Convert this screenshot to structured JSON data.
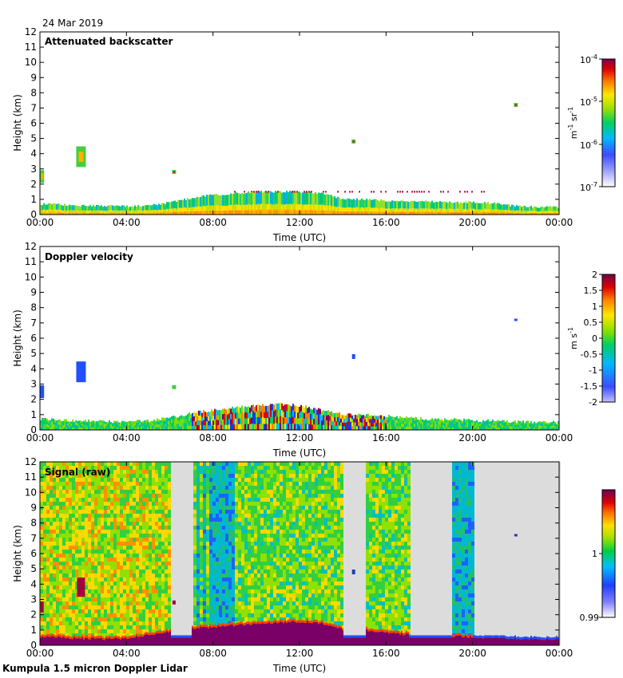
{
  "header": {
    "date": "24 Mar 2019"
  },
  "footer": {
    "instrument": "Kumpula 1.5 micron Doppler Lidar"
  },
  "chart_data": [
    {
      "type": "heatmap",
      "title": "Attenuated backscatter",
      "xlabel": "Time (UTC)",
      "ylabel": "Height (km)",
      "x_ticks": [
        "00:00",
        "04:00",
        "08:00",
        "12:00",
        "16:00",
        "20:00",
        "00:00"
      ],
      "xlim_hours": [
        0,
        24
      ],
      "ylim": [
        0,
        12
      ],
      "y_ticks": [
        0,
        1,
        2,
        3,
        4,
        5,
        6,
        7,
        8,
        9,
        10,
        11,
        12
      ],
      "colorbar": {
        "scale": "log",
        "range": [
          1e-07,
          0.0001
        ],
        "ticks": [
          {
            "base": "10",
            "exp": "-4",
            "value": -4
          },
          {
            "base": "10",
            "exp": "-5",
            "value": -5
          },
          {
            "base": "10",
            "exp": "-6",
            "value": -6
          },
          {
            "base": "10",
            "exp": "-7",
            "value": -7
          }
        ],
        "units": {
          "m": "m",
          "m_exp": "-1",
          "sr": "sr",
          "sr_exp": "-1"
        }
      },
      "boundary_layer_top_km": [
        0.7,
        0.65,
        0.6,
        0.55,
        0.55,
        0.6,
        0.8,
        1.1,
        1.3,
        1.4,
        1.5,
        1.5,
        1.5,
        1.4,
        1.0,
        1.0,
        0.9,
        0.9,
        0.85,
        0.8,
        0.8,
        0.75,
        0.55,
        0.5,
        0.5
      ],
      "features": [
        {
          "t": 0.1,
          "h": 2.5,
          "desc": "low cloud"
        },
        {
          "t": 1.9,
          "h": 3.8,
          "desc": "cloud"
        },
        {
          "t": 6.2,
          "h": 2.8,
          "desc": "small cloud"
        },
        {
          "t": 14.5,
          "h": 4.8,
          "desc": "small cloud"
        },
        {
          "t": 22.0,
          "h": 7.2,
          "desc": "small cloud"
        }
      ]
    },
    {
      "type": "heatmap",
      "title": "Doppler velocity",
      "xlabel": "Time (UTC)",
      "ylabel": "Height (km)",
      "x_ticks": [
        "00:00",
        "04:00",
        "08:00",
        "12:00",
        "16:00",
        "20:00",
        "00:00"
      ],
      "xlim_hours": [
        0,
        24
      ],
      "ylim": [
        0,
        12
      ],
      "y_ticks": [
        0,
        1,
        2,
        3,
        4,
        5,
        6,
        7,
        8,
        9,
        10,
        11,
        12
      ],
      "colorbar": {
        "scale": "linear",
        "range": [
          -2,
          2
        ],
        "ticks": [
          {
            "label": "2",
            "value": 2
          },
          {
            "label": "1.5",
            "value": 1.5
          },
          {
            "label": "1",
            "value": 1
          },
          {
            "label": "0.5",
            "value": 0.5
          },
          {
            "label": "0",
            "value": 0
          },
          {
            "label": "-0.5",
            "value": -0.5
          },
          {
            "label": "-1",
            "value": -1
          },
          {
            "label": "-1.5",
            "value": -1.5
          },
          {
            "label": "-2",
            "value": -2
          }
        ],
        "units": {
          "m": "m",
          "s": "s",
          "s_exp": "-1"
        }
      },
      "data_top_km": [
        0.7,
        0.65,
        0.6,
        0.55,
        0.55,
        0.6,
        0.8,
        1.1,
        1.3,
        1.5,
        1.6,
        1.7,
        1.6,
        1.3,
        1.0,
        1.0,
        0.9,
        0.8,
        0.7,
        0.7,
        0.6,
        0.6,
        0.55,
        0.5,
        0.5
      ]
    },
    {
      "type": "heatmap",
      "title": "Signal (raw)",
      "xlabel": "Time (UTC)",
      "ylabel": "Height (km)",
      "x_ticks": [
        "00:00",
        "04:00",
        "08:00",
        "12:00",
        "16:00",
        "20:00",
        "00:00"
      ],
      "xlim_hours": [
        0,
        24
      ],
      "ylim": [
        0,
        12
      ],
      "y_ticks": [
        0,
        1,
        2,
        3,
        4,
        5,
        6,
        7,
        8,
        9,
        10,
        11,
        12
      ],
      "colorbar": {
        "scale": "linear",
        "range": [
          0.99,
          1.01
        ],
        "ticks": [
          {
            "label": "1",
            "value": 1.0
          },
          {
            "label": "0.99",
            "value": 0.99
          }
        ]
      },
      "no_signal_periods_hours": [
        [
          6.0,
          7.0
        ],
        [
          14.0,
          15.0
        ],
        [
          17.0,
          19.0
        ],
        [
          20.0,
          24.0
        ]
      ]
    }
  ]
}
